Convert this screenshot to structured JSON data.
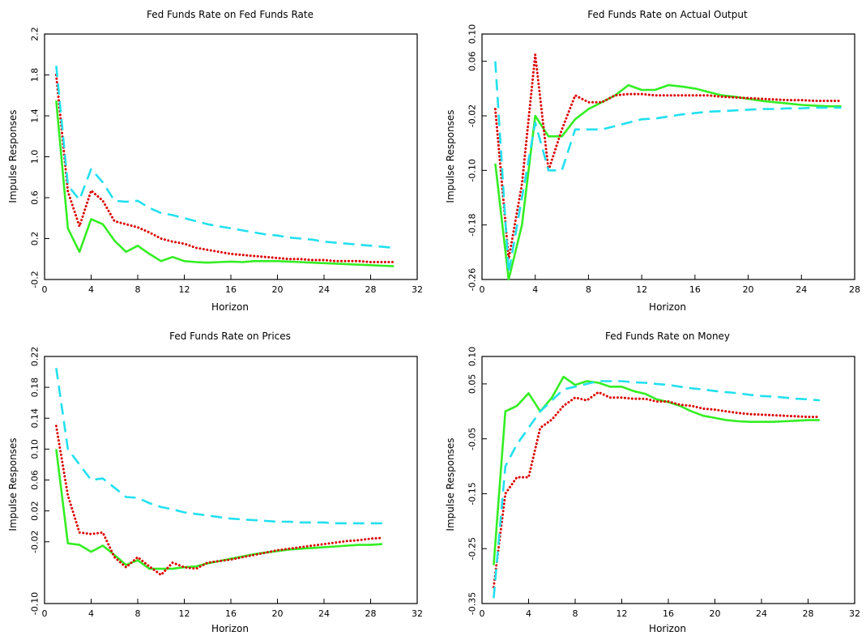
{
  "chart_data": [
    {
      "type": "line",
      "title": "Fed Funds Rate on Fed Funds Rate",
      "xlabel": "Horizon",
      "ylabel": "Impulse Responses",
      "xlim": [
        0,
        32
      ],
      "ylim": [
        -0.2,
        2.2
      ],
      "xticks": [
        0,
        4,
        8,
        12,
        16,
        20,
        24,
        28,
        32
      ],
      "yticks": [
        -0.2,
        0.2,
        0.6,
        1.0,
        1.4,
        1.8,
        2.2
      ],
      "ytick_labels": [
        "-0.2",
        "0.2",
        "0.6",
        "1.0",
        "1.4",
        "1.8",
        "2.2"
      ],
      "series": [
        {
          "style": "solid",
          "color": "#33ee22",
          "x": [
            1,
            2,
            3,
            4,
            5,
            6,
            7,
            8,
            9,
            10,
            11,
            12,
            13,
            14,
            15,
            16,
            17,
            18,
            19,
            20,
            21,
            22,
            23,
            24,
            25,
            26,
            27,
            28,
            29,
            30
          ],
          "y": [
            1.55,
            0.3,
            0.07,
            0.39,
            0.34,
            0.18,
            0.07,
            0.13,
            0.05,
            -0.02,
            0.02,
            -0.02,
            -0.03,
            -0.035,
            -0.03,
            -0.025,
            -0.03,
            -0.02,
            -0.02,
            -0.02,
            -0.025,
            -0.03,
            -0.035,
            -0.04,
            -0.045,
            -0.05,
            -0.055,
            -0.06,
            -0.065,
            -0.07
          ]
        },
        {
          "style": "dotted",
          "color": "#dd0000",
          "x": [
            1,
            2,
            3,
            4,
            5,
            6,
            7,
            8,
            9,
            10,
            11,
            12,
            13,
            14,
            15,
            16,
            17,
            18,
            19,
            20,
            21,
            22,
            23,
            24,
            25,
            26,
            27,
            28,
            29,
            30
          ],
          "y": [
            1.8,
            0.66,
            0.32,
            0.67,
            0.57,
            0.37,
            0.34,
            0.31,
            0.26,
            0.2,
            0.17,
            0.15,
            0.11,
            0.09,
            0.07,
            0.05,
            0.04,
            0.03,
            0.02,
            0.01,
            0.0,
            0.0,
            -0.01,
            -0.01,
            -0.02,
            -0.02,
            -0.02,
            -0.03,
            -0.03,
            -0.03
          ]
        },
        {
          "style": "dashed",
          "color": "#22e0ee",
          "x": [
            1,
            2,
            3,
            4,
            5,
            6,
            7,
            8,
            9,
            10,
            11,
            12,
            13,
            14,
            15,
            16,
            17,
            18,
            19,
            20,
            21,
            22,
            23,
            24,
            25,
            26,
            27,
            28,
            29,
            30
          ],
          "y": [
            1.89,
            0.72,
            0.58,
            0.88,
            0.75,
            0.57,
            0.56,
            0.57,
            0.5,
            0.45,
            0.43,
            0.4,
            0.37,
            0.34,
            0.32,
            0.3,
            0.28,
            0.26,
            0.24,
            0.23,
            0.21,
            0.2,
            0.19,
            0.17,
            0.16,
            0.15,
            0.14,
            0.13,
            0.12,
            0.11
          ]
        }
      ]
    },
    {
      "type": "line",
      "title": "Fed Funds Rate on Actual Output",
      "xlabel": "Horizon",
      "ylabel": "Impulse Responses",
      "xlim": [
        0,
        28
      ],
      "ylim": [
        -0.26,
        0.1
      ],
      "xticks": [
        0,
        4,
        8,
        12,
        16,
        20,
        24,
        28
      ],
      "yticks": [
        -0.26,
        -0.18,
        -0.1,
        -0.02,
        0.06,
        0.1
      ],
      "ytick_labels": [
        "-0.26",
        "-0.18",
        "-0.10",
        "-0.02",
        "0.06",
        "0.10"
      ],
      "series": [
        {
          "style": "solid",
          "color": "#33ee22",
          "x": [
            1,
            2,
            3,
            4,
            5,
            6,
            7,
            8,
            9,
            10,
            11,
            12,
            13,
            14,
            15,
            16,
            17,
            18,
            19,
            20,
            21,
            22,
            23,
            24,
            25,
            26,
            27
          ],
          "y": [
            -0.09,
            -0.26,
            -0.18,
            -0.02,
            -0.05,
            -0.05,
            -0.025,
            -0.01,
            0.0,
            0.01,
            0.025,
            0.018,
            0.018,
            0.025,
            0.023,
            0.02,
            0.015,
            0.01,
            0.008,
            0.005,
            0.002,
            0.0,
            -0.002,
            -0.004,
            -0.005,
            -0.006,
            -0.006
          ]
        },
        {
          "style": "dotted",
          "color": "#dd0000",
          "x": [
            1,
            2,
            3,
            4,
            5,
            6,
            7,
            8,
            9,
            10,
            11,
            12,
            13,
            14,
            15,
            16,
            17,
            18,
            19,
            20,
            21,
            22,
            23,
            24,
            25,
            26,
            27
          ],
          "y": [
            -0.01,
            -0.23,
            -0.12,
            0.07,
            -0.1,
            -0.04,
            0.01,
            0.0,
            0.0,
            0.01,
            0.012,
            0.012,
            0.01,
            0.01,
            0.01,
            0.01,
            0.01,
            0.008,
            0.007,
            0.006,
            0.005,
            0.004,
            0.003,
            0.003,
            0.002,
            0.002,
            0.002
          ]
        },
        {
          "style": "dashed",
          "color": "#22e0ee",
          "x": [
            1,
            2,
            3,
            4,
            5,
            6,
            7,
            8,
            9,
            10,
            11,
            12,
            13,
            14,
            15,
            16,
            17,
            18,
            19,
            20,
            21,
            22,
            23,
            24,
            25,
            26,
            27
          ],
          "y": [
            0.06,
            -0.25,
            -0.14,
            -0.03,
            -0.1,
            -0.1,
            -0.04,
            -0.04,
            -0.04,
            -0.035,
            -0.03,
            -0.025,
            -0.024,
            -0.021,
            -0.018,
            -0.016,
            -0.014,
            -0.013,
            -0.012,
            -0.011,
            -0.01,
            -0.01,
            -0.009,
            -0.009,
            -0.008,
            -0.008,
            -0.008
          ]
        }
      ]
    },
    {
      "type": "line",
      "title": "Fed Funds Rate on Prices",
      "xlabel": "Horizon",
      "ylabel": "Impulse Responses",
      "xlim": [
        0,
        32
      ],
      "ylim": [
        -0.1,
        0.22
      ],
      "xticks": [
        0,
        4,
        8,
        12,
        16,
        20,
        24,
        28,
        32
      ],
      "yticks": [
        -0.1,
        -0.02,
        0.02,
        0.06,
        0.1,
        0.14,
        0.18,
        0.22
      ],
      "ytick_labels": [
        "-0.10",
        "-0.02",
        "0.02",
        "0.06",
        "0.10",
        "0.14",
        "0.18",
        "0.22"
      ],
      "series": [
        {
          "style": "solid",
          "color": "#33ee22",
          "x": [
            1,
            2,
            3,
            4,
            5,
            6,
            7,
            8,
            9,
            10,
            11,
            12,
            13,
            14,
            15,
            16,
            17,
            18,
            19,
            20,
            21,
            22,
            23,
            24,
            25,
            26,
            27,
            28,
            29
          ],
          "y": [
            0.1,
            -0.022,
            -0.024,
            -0.033,
            -0.025,
            -0.037,
            -0.05,
            -0.044,
            -0.055,
            -0.055,
            -0.055,
            -0.053,
            -0.052,
            -0.048,
            -0.045,
            -0.042,
            -0.039,
            -0.036,
            -0.034,
            -0.032,
            -0.03,
            -0.029,
            -0.028,
            -0.027,
            -0.026,
            -0.025,
            -0.024,
            -0.024,
            -0.023
          ]
        },
        {
          "style": "dotted",
          "color": "#dd0000",
          "x": [
            1,
            2,
            3,
            4,
            5,
            6,
            7,
            8,
            9,
            10,
            11,
            12,
            13,
            14,
            15,
            16,
            17,
            18,
            19,
            20,
            21,
            22,
            23,
            24,
            25,
            26,
            27,
            28,
            29
          ],
          "y": [
            0.13,
            0.04,
            -0.008,
            -0.01,
            -0.008,
            -0.04,
            -0.053,
            -0.04,
            -0.052,
            -0.063,
            -0.047,
            -0.053,
            -0.055,
            -0.047,
            -0.045,
            -0.043,
            -0.04,
            -0.037,
            -0.034,
            -0.031,
            -0.029,
            -0.027,
            -0.025,
            -0.023,
            -0.021,
            -0.019,
            -0.018,
            -0.016,
            -0.015
          ]
        },
        {
          "style": "dashed",
          "color": "#22e0ee",
          "x": [
            1,
            2,
            3,
            4,
            5,
            6,
            7,
            8,
            9,
            10,
            11,
            12,
            13,
            14,
            15,
            16,
            17,
            18,
            19,
            20,
            21,
            22,
            23,
            24,
            25,
            26,
            27,
            28,
            29
          ],
          "y": [
            0.205,
            0.1,
            0.08,
            0.06,
            0.062,
            0.05,
            0.038,
            0.037,
            0.03,
            0.025,
            0.022,
            0.018,
            0.016,
            0.014,
            0.012,
            0.01,
            0.009,
            0.008,
            0.007,
            0.006,
            0.006,
            0.005,
            0.005,
            0.005,
            0.004,
            0.004,
            0.004,
            0.004,
            0.004
          ]
        }
      ]
    },
    {
      "type": "line",
      "title": "Fed Funds Rate on Money",
      "xlabel": "Horizon",
      "ylabel": "Impulse Responses",
      "xlim": [
        0,
        32
      ],
      "ylim": [
        -0.35,
        0.1
      ],
      "xticks": [
        0,
        4,
        8,
        12,
        16,
        20,
        24,
        28,
        32
      ],
      "yticks": [
        -0.35,
        -0.25,
        -0.15,
        -0.05,
        0.05,
        0.1
      ],
      "ytick_labels": [
        "-0.35",
        "-0.25",
        "-0.15",
        "-0.05",
        "0.05",
        "0.10"
      ],
      "series": [
        {
          "style": "solid",
          "color": "#33ee22",
          "x": [
            1,
            2,
            3,
            4,
            5,
            6,
            7,
            8,
            9,
            10,
            11,
            12,
            13,
            14,
            15,
            16,
            17,
            18,
            19,
            20,
            21,
            22,
            23,
            24,
            25,
            26,
            27,
            28,
            29
          ],
          "y": [
            -0.28,
            0.0,
            0.01,
            0.033,
            0.0,
            0.025,
            0.063,
            0.048,
            0.055,
            0.052,
            0.045,
            0.045,
            0.037,
            0.032,
            0.022,
            0.017,
            0.01,
            0.0,
            -0.008,
            -0.012,
            -0.016,
            -0.018,
            -0.019,
            -0.019,
            -0.019,
            -0.018,
            -0.017,
            -0.016,
            -0.016
          ]
        },
        {
          "style": "dotted",
          "color": "#dd0000",
          "x": [
            1,
            2,
            3,
            4,
            5,
            6,
            7,
            8,
            9,
            10,
            11,
            12,
            13,
            14,
            15,
            16,
            17,
            18,
            19,
            20,
            21,
            22,
            23,
            24,
            25,
            26,
            27,
            28,
            29
          ],
          "y": [
            -0.32,
            -0.15,
            -0.12,
            -0.12,
            -0.03,
            -0.015,
            0.01,
            0.025,
            0.02,
            0.035,
            0.025,
            0.025,
            0.023,
            0.023,
            0.018,
            0.018,
            0.012,
            0.01,
            0.005,
            0.003,
            0.0,
            -0.003,
            -0.005,
            -0.006,
            -0.007,
            -0.008,
            -0.009,
            -0.01,
            -0.01
          ]
        },
        {
          "style": "dashed",
          "color": "#22e0ee",
          "x": [
            1,
            2,
            3,
            4,
            5,
            6,
            7,
            8,
            9,
            10,
            11,
            12,
            13,
            14,
            15,
            16,
            17,
            18,
            19,
            20,
            21,
            22,
            23,
            24,
            25,
            26,
            27,
            28,
            29
          ],
          "y": [
            -0.34,
            -0.1,
            -0.06,
            -0.03,
            0.0,
            0.02,
            0.04,
            0.045,
            0.05,
            0.055,
            0.055,
            0.055,
            0.053,
            0.052,
            0.05,
            0.048,
            0.045,
            0.042,
            0.04,
            0.037,
            0.035,
            0.033,
            0.03,
            0.028,
            0.027,
            0.025,
            0.023,
            0.022,
            0.02
          ]
        }
      ]
    }
  ]
}
